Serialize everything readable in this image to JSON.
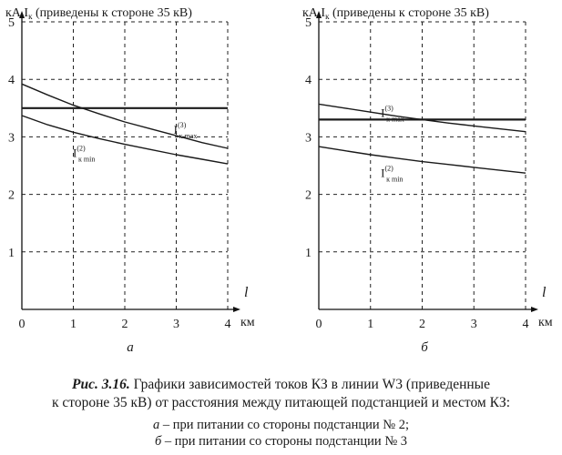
{
  "chart_data": [
    {
      "type": "line",
      "panel_label": "а",
      "y_unit": "кА",
      "y_symbol": "I",
      "y_symbol_sub": "к",
      "y_note": "(приведены к стороне 35 кВ)",
      "x_symbol": "l",
      "x_unit": "км",
      "xlim": [
        0,
        4
      ],
      "ylim": [
        0,
        5
      ],
      "x_ticks": [
        "0",
        "1",
        "2",
        "3",
        "4"
      ],
      "y_ticks": [
        "1",
        "2",
        "3",
        "4",
        "5"
      ],
      "grid": true,
      "series": [
        {
          "x": [
            0,
            1,
            2,
            3,
            4
          ],
          "values": [
            3.5,
            3.5,
            3.5,
            3.5,
            3.5
          ]
        },
        {
          "x": [
            0,
            0.5,
            1,
            1.5,
            2,
            2.5,
            3,
            3.5,
            4
          ],
          "values": [
            3.92,
            3.73,
            3.55,
            3.4,
            3.26,
            3.14,
            3.02,
            2.9,
            2.8
          ]
        },
        {
          "x": [
            0,
            0.5,
            1,
            1.5,
            2,
            2.5,
            3,
            3.5,
            4
          ],
          "values": [
            3.37,
            3.21,
            3.08,
            2.97,
            2.87,
            2.78,
            2.69,
            2.61,
            2.53
          ]
        }
      ],
      "annotations": [
        {
          "text": "I",
          "sup": "(3)",
          "sub": "к max"
        },
        {
          "text": "I",
          "sup": "(2)",
          "sub": "к min"
        }
      ]
    },
    {
      "type": "line",
      "panel_label": "б",
      "y_unit": "кА",
      "y_symbol": "I",
      "y_symbol_sub": "к",
      "y_note": "(приведены к стороне 35 кВ)",
      "x_symbol": "l",
      "x_unit": "км",
      "xlim": [
        0,
        4
      ],
      "ylim": [
        0,
        5
      ],
      "x_ticks": [
        "0",
        "1",
        "2",
        "3",
        "4"
      ],
      "y_ticks": [
        "1",
        "2",
        "3",
        "4",
        "5"
      ],
      "grid": true,
      "series": [
        {
          "x": [
            0,
            1,
            2,
            3,
            4
          ],
          "values": [
            3.3,
            3.3,
            3.3,
            3.3,
            3.3
          ]
        },
        {
          "x": [
            0,
            0.5,
            1,
            1.5,
            2,
            2.5,
            3,
            3.5,
            4
          ],
          "values": [
            3.57,
            3.5,
            3.43,
            3.36,
            3.3,
            3.24,
            3.19,
            3.14,
            3.09
          ]
        },
        {
          "x": [
            0,
            0.5,
            1,
            1.5,
            2,
            2.5,
            3,
            3.5,
            4
          ],
          "values": [
            2.83,
            2.76,
            2.69,
            2.63,
            2.57,
            2.52,
            2.47,
            2.42,
            2.37
          ]
        }
      ],
      "annotations": [
        {
          "text": "I",
          "sup": "(3)",
          "sub": "к max"
        },
        {
          "text": "I",
          "sup": "(2)",
          "sub": "к min"
        }
      ]
    }
  ],
  "caption": {
    "fig_label": "Рис. 3.16.",
    "line1_rest": " Графики зависимостей токов КЗ в линии W3 (приведенные",
    "line2": "к стороне 35 кВ) от расстояния между питающей подстанцией и местом КЗ:",
    "line3_letter": "а",
    "line3_rest": " – при питании со стороны подстанции № 2;",
    "line4_letter": "б",
    "line4_rest": " – при питании со стороны подстанции № 3"
  }
}
